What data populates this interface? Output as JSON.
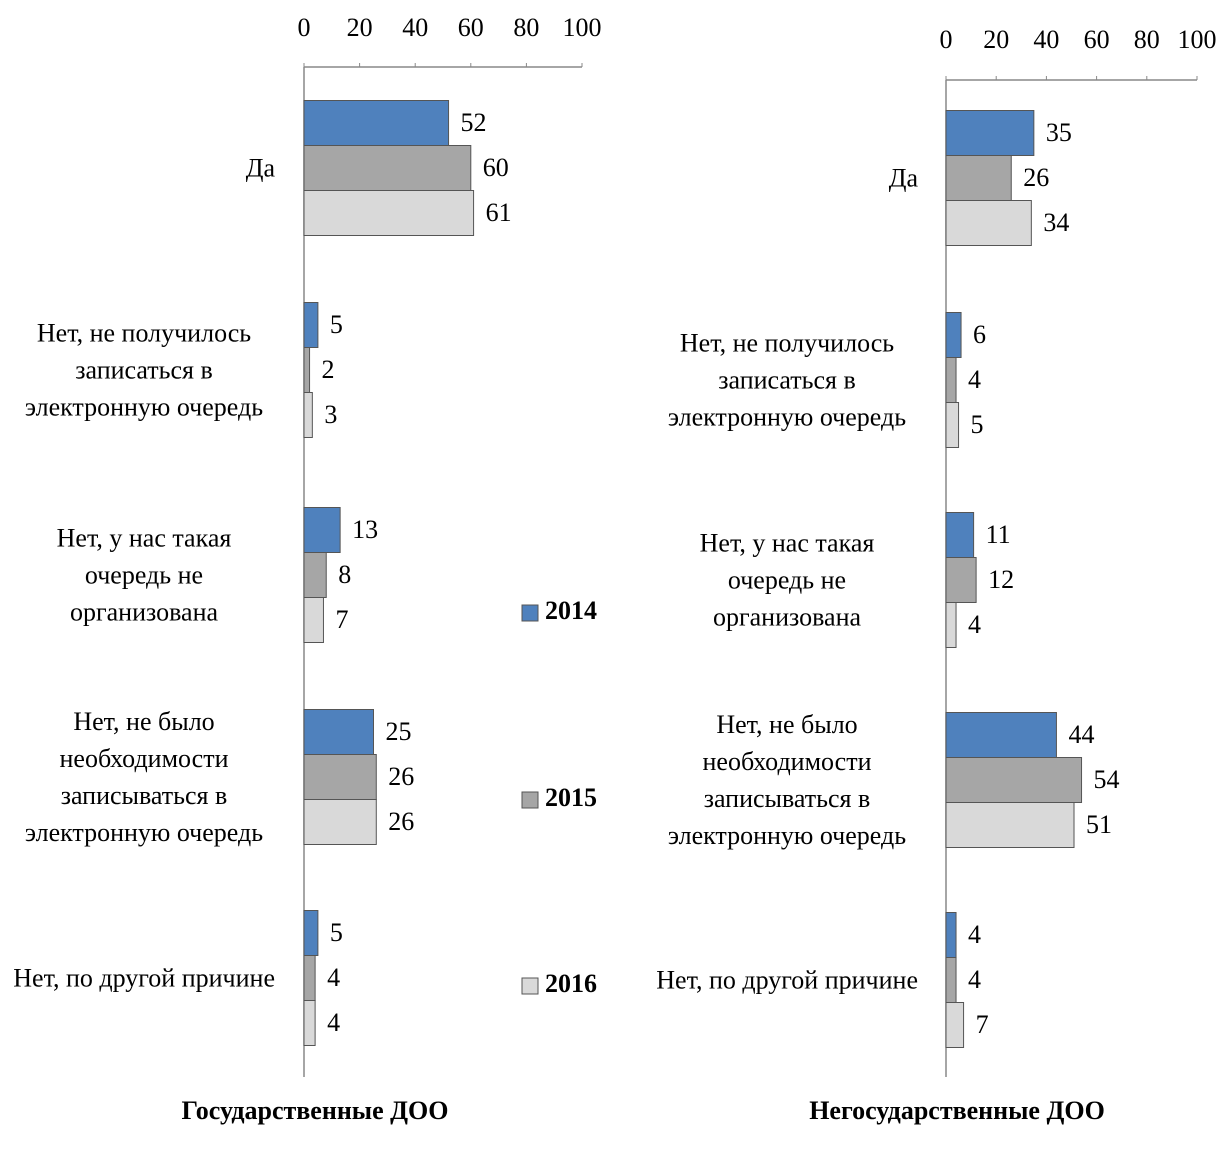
{
  "chart_data": [
    {
      "type": "bar",
      "orientation": "horizontal",
      "title": "Государственные ДОО",
      "categories": [
        "Да",
        "Нет, не получилось записаться в электронную очередь",
        "Нет, у нас такая очередь не организована",
        "Нет, не было необходимости записываться в электронную очередь",
        "Нет, по другой причине"
      ],
      "series": [
        {
          "name": "2014",
          "color": "#4f81bd",
          "values": [
            52,
            5,
            13,
            25,
            5
          ]
        },
        {
          "name": "2015",
          "color": "#a6a6a6",
          "values": [
            60,
            2,
            8,
            26,
            4
          ]
        },
        {
          "name": "2016",
          "color": "#d9d9d9",
          "values": [
            61,
            3,
            7,
            26,
            4
          ]
        }
      ],
      "xlim": [
        0,
        100
      ],
      "xticks": [
        0,
        20,
        40,
        60,
        80,
        100
      ]
    },
    {
      "type": "bar",
      "orientation": "horizontal",
      "title": "Негосударственные ДОО",
      "categories": [
        "Да",
        "Нет, не получилось записаться в электронную очередь",
        "Нет, у нас такая очередь не организована",
        "Нет, не было необходимости записываться в электронную очередь",
        "Нет, по другой причине"
      ],
      "series": [
        {
          "name": "2014",
          "color": "#4f81bd",
          "values": [
            35,
            6,
            11,
            44,
            4
          ]
        },
        {
          "name": "2015",
          "color": "#a6a6a6",
          "values": [
            26,
            4,
            12,
            54,
            4
          ]
        },
        {
          "name": "2016",
          "color": "#d9d9d9",
          "values": [
            34,
            5,
            4,
            51,
            7
          ]
        }
      ],
      "xlim": [
        0,
        100
      ],
      "xticks": [
        0,
        20,
        40,
        60,
        80,
        100
      ]
    }
  ]
}
